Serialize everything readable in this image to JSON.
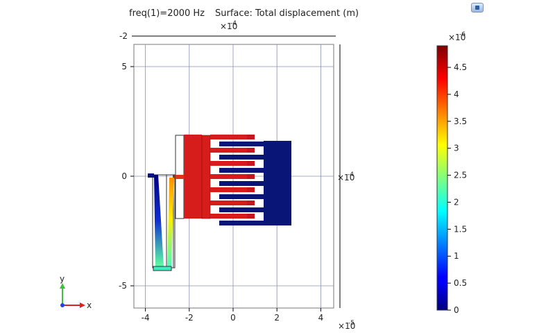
{
  "title_left": "freq(1)=2000 Hz",
  "title_right": "Surface: Total displacement (m)",
  "corner_icon": "view-icon",
  "chart_data": {
    "type": "heatmap",
    "title": "freq(1)=2000 Hz   Surface: Total displacement (m)",
    "x_ticks": [
      "-4",
      "-2",
      "0",
      "2",
      "4"
    ],
    "x_tick_values": [
      -4,
      -2,
      0,
      2,
      4
    ],
    "x_exponent_base": "×10",
    "x_exponent_power": "-5",
    "y_ticks": [
      "5",
      "0",
      "-5"
    ],
    "y_tick_values": [
      5,
      0,
      -5
    ],
    "y_exponent_base": "×10",
    "y_exponent_power": "-5",
    "top_scale_tick": "-2",
    "top_exponent_base": "×10",
    "top_exponent_power": "-4",
    "right_exponent_base": "×10",
    "right_exponent_power": "-4",
    "xlim": [
      -4.5,
      4.9
    ],
    "ylim": [
      -6,
      6
    ],
    "grid": true,
    "colorbar": {
      "exponent_base": "×10",
      "exponent_power": "-6",
      "ticks": [
        "0",
        "0.5",
        "1",
        "1.5",
        "2",
        "2.5",
        "3",
        "3.5",
        "4",
        "4.5"
      ],
      "tick_values": [
        0,
        0.5,
        1,
        1.5,
        2,
        2.5,
        3,
        3.5,
        4,
        4.5
      ],
      "range": [
        0,
        4.9
      ],
      "colormap": "jet"
    },
    "axes_triad": {
      "x_label": "x",
      "y_label": "y"
    }
  }
}
